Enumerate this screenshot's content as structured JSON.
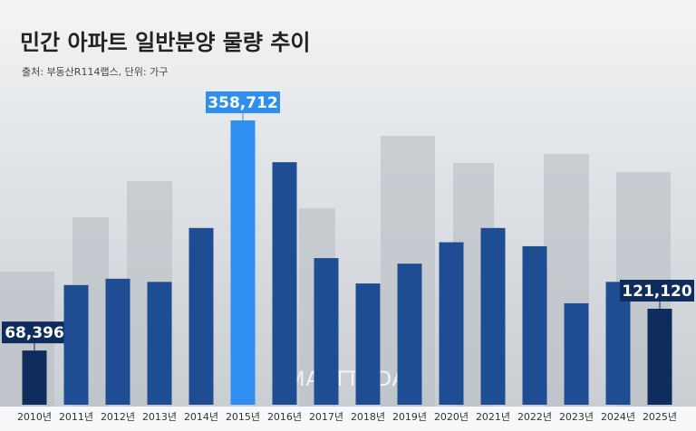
{
  "chart_data": {
    "type": "bar",
    "title": "민간 아파트 일반분양 물량 추이",
    "subtitle": "출처: 부동산R114랩스, 단위: 가구",
    "watermark": "SMARTTODAY",
    "categories": [
      "2010년",
      "2011년",
      "2012년",
      "2013년",
      "2014년",
      "2015년",
      "2016년",
      "2017년",
      "2018년",
      "2019년",
      "2020년",
      "2021년",
      "2022년",
      "2023년",
      "2024년",
      "2025년"
    ],
    "values": [
      68396,
      151000,
      159000,
      155000,
      223000,
      358712,
      306000,
      185000,
      153000,
      178000,
      205000,
      223000,
      200000,
      128000,
      155000,
      121120
    ],
    "value_labels": [
      "68,396",
      null,
      null,
      null,
      null,
      "358,712",
      null,
      null,
      null,
      null,
      null,
      null,
      null,
      null,
      null,
      "121,120"
    ],
    "colors": [
      "#0f2d5c",
      "#1f4d94",
      "#1f4d94",
      "#1f4d94",
      "#1f4d94",
      "#2e8ff0",
      "#1f4d94",
      "#1f4d94",
      "#1f4d94",
      "#1f4d94",
      "#1f4d94",
      "#1f4d94",
      "#1f4d94",
      "#1f4d94",
      "#1f4d94",
      "#0f2d5c"
    ]
  }
}
